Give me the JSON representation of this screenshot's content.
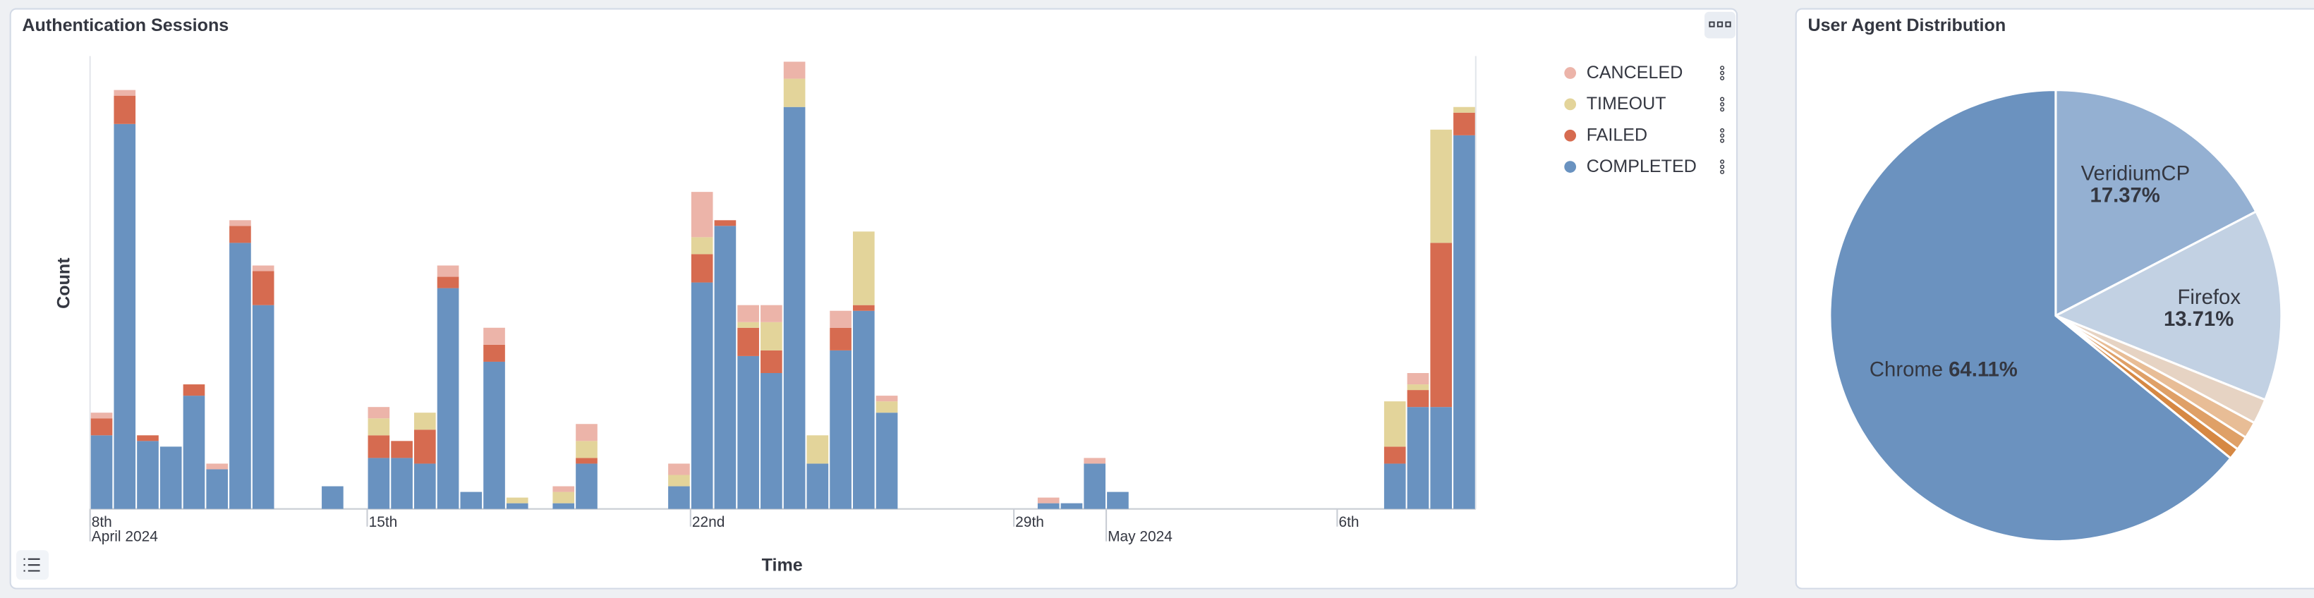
{
  "chart_data": [
    {
      "type": "bar",
      "stacked": true,
      "title": "Authentication Sessions",
      "x_label": "Time",
      "y_label": "Count",
      "categories": [
        null,
        null,
        null,
        null,
        null,
        null,
        null,
        null,
        null,
        null,
        null,
        null,
        null,
        null,
        null,
        null,
        null,
        null,
        null,
        null,
        null,
        null,
        null,
        null,
        null,
        null,
        null,
        null,
        null,
        null,
        null,
        null,
        null,
        null,
        null,
        null,
        null,
        null,
        null,
        null,
        null,
        null,
        null,
        null,
        null,
        null,
        null,
        null,
        null,
        null,
        null,
        null,
        null,
        null,
        null,
        null,
        null,
        null,
        null,
        null
      ],
      "xlim": [
        0,
        60
      ],
      "xticks": [
        {
          "value": 0,
          "label": "8th"
        },
        {
          "value": 12,
          "label": "15th"
        },
        {
          "value": 26,
          "label": "22nd"
        },
        {
          "value": 40,
          "label": "29th"
        },
        {
          "value": 54,
          "label": "6th"
        }
      ],
      "xticks_month": [
        {
          "value": 0,
          "label": "April 2024"
        },
        {
          "value": 44,
          "label": "May 2024"
        }
      ],
      "ylim": [
        0,
        80
      ],
      "legend": "right",
      "series": [
        {
          "name": "COMPLETED",
          "color": "#6992c0",
          "values": [
            13,
            68,
            12,
            11,
            20,
            7,
            47,
            36,
            0,
            0,
            4,
            0,
            9,
            9,
            8,
            39,
            3,
            26,
            1,
            0,
            1,
            8,
            0,
            0,
            0,
            4,
            40,
            50,
            27,
            24,
            71,
            8,
            28,
            35,
            17,
            0,
            0,
            0,
            0,
            0,
            0,
            1,
            1,
            8,
            3,
            0,
            0,
            0,
            0,
            0,
            0,
            0,
            0,
            0,
            0,
            0,
            8,
            18,
            18,
            66
          ]
        },
        {
          "name": "FAILED",
          "color": "#d66b50",
          "values": [
            3,
            5,
            1,
            0,
            2,
            0,
            3,
            6,
            0,
            0,
            0,
            0,
            4,
            3,
            6,
            2,
            0,
            3,
            0,
            0,
            0,
            1,
            0,
            0,
            0,
            0,
            5,
            1,
            5,
            4,
            0,
            0,
            4,
            1,
            0,
            0,
            0,
            0,
            0,
            0,
            0,
            0,
            0,
            0,
            0,
            0,
            0,
            0,
            0,
            0,
            0,
            0,
            0,
            0,
            0,
            0,
            3,
            3,
            29,
            4
          ]
        },
        {
          "name": "TIMEOUT",
          "color": "#e3d49a",
          "values": [
            0,
            0,
            0,
            0,
            0,
            0,
            0,
            0,
            0,
            0,
            0,
            0,
            3,
            0,
            3,
            0,
            0,
            0,
            1,
            0,
            2,
            3,
            0,
            0,
            0,
            2,
            3,
            0,
            1,
            5,
            5,
            5,
            0,
            13,
            2,
            0,
            0,
            0,
            0,
            0,
            0,
            0,
            0,
            0,
            0,
            0,
            0,
            0,
            0,
            0,
            0,
            0,
            0,
            0,
            0,
            0,
            8,
            1,
            20,
            1
          ]
        },
        {
          "name": "CANCELED",
          "color": "#ecb4a9",
          "values": [
            1,
            1,
            0,
            0,
            0,
            1,
            1,
            1,
            0,
            0,
            0,
            0,
            2,
            0,
            0,
            2,
            0,
            3,
            0,
            0,
            1,
            3,
            0,
            0,
            0,
            2,
            8,
            0,
            3,
            3,
            3,
            0,
            3,
            0,
            1,
            0,
            0,
            0,
            0,
            0,
            0,
            1,
            0,
            1,
            0,
            0,
            0,
            0,
            0,
            0,
            0,
            0,
            0,
            0,
            0,
            0,
            0,
            2,
            0,
            0
          ]
        }
      ]
    },
    {
      "type": "pie",
      "title": "User Agent Distribution",
      "categories": [
        "VeridiumCP",
        "Firefox",
        null,
        null,
        null,
        null,
        "Chrome"
      ],
      "values": [
        17.37,
        13.71,
        1.8,
        1.2,
        1.0,
        0.81,
        64.11
      ],
      "value_labels": [
        "17.37%",
        "13.71%",
        null,
        null,
        null,
        null,
        "64.11%"
      ],
      "colors": [
        "#94b0d2",
        "#c2d1e3",
        "#e6d3c3",
        "#e8bd96",
        "#dfa067",
        "#d68843",
        "#6b92bf"
      ]
    }
  ]
}
